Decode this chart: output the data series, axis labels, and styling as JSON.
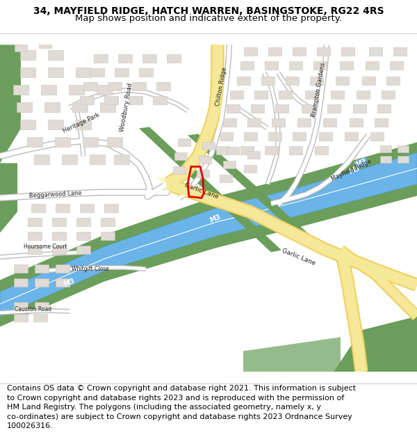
{
  "title_line1": "34, MAYFIELD RIDGE, HATCH WARREN, BASINGSTOKE, RG22 4RS",
  "title_line2": "Map shows position and indicative extent of the property.",
  "footer_lines": [
    "Contains OS data © Crown copyright and database right 2021. This information is subject",
    "to Crown copyright and database rights 2023 and is reproduced with the permission of",
    "HM Land Registry. The polygons (including the associated geometry, namely x, y",
    "co-ordinates) are subject to Crown copyright and database rights 2023 Ordnance Survey",
    "100026316."
  ],
  "map_bg": "#ffffff",
  "road_yellow": "#f0d060",
  "road_yellow_light": "#f5e898",
  "road_yellow_pale": "#faf5d0",
  "motorway_blue": "#6ab4e8",
  "motorway_blue_border": "#4898cc",
  "motorway_white_line": "#ffffff",
  "green_area": "#6a9e5a",
  "building_fill": "#e0dbd4",
  "building_edge": "#c8c3bc",
  "road_white": "#ffffff",
  "road_white_edge": "#cccccc",
  "plot_red": "#dd0000",
  "title_fontsize": 10,
  "subtitle_fontsize": 9.5,
  "footer_fontsize": 8.0,
  "label_fontsize": 6.5,
  "label_color": "#222222"
}
